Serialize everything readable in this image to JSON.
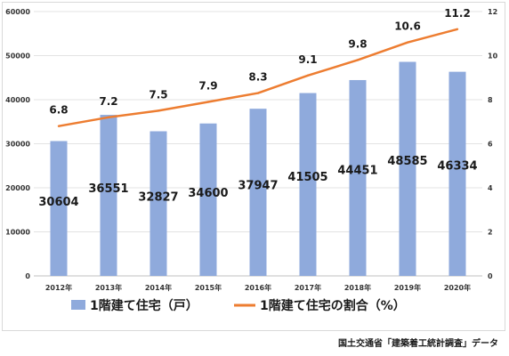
{
  "chart_data": {
    "type": "bar",
    "categories": [
      "2012年",
      "2013年",
      "2014年",
      "2015年",
      "2016年",
      "2017年",
      "2018年",
      "2019年",
      "2020年"
    ],
    "series": [
      {
        "name": "1階建て住宅（戸）",
        "type": "bar",
        "axis": "left",
        "color": "#8faadc",
        "values": [
          30604,
          36551,
          32827,
          34600,
          37947,
          41505,
          44451,
          48585,
          46334
        ],
        "labels": [
          "30604",
          "36551",
          "32827",
          "34600",
          "37947",
          "41505",
          "44451",
          "48585",
          "46334"
        ]
      },
      {
        "name": "1階建て住宅の割合（%）",
        "type": "line",
        "axis": "right",
        "color": "#ed7d31",
        "values": [
          6.8,
          7.2,
          7.5,
          7.9,
          8.3,
          9.1,
          9.8,
          10.6,
          11.2
        ],
        "labels": [
          "6.8",
          "7.2",
          "7.5",
          "7.9",
          "8.3",
          "9.1",
          "9.8",
          "10.6",
          "11.2"
        ]
      }
    ],
    "left_axis": {
      "ylim": [
        0,
        60000
      ],
      "ticks": [
        "0",
        "10000",
        "20000",
        "30000",
        "40000",
        "50000",
        "60000"
      ]
    },
    "right_axis": {
      "ylim": [
        0,
        12
      ],
      "ticks": [
        "0",
        "2",
        "4",
        "6",
        "8",
        "10",
        "12"
      ]
    },
    "grid": true,
    "legend_position": "bottom",
    "source": "国土交通省「建築着工統計調査」データ"
  }
}
